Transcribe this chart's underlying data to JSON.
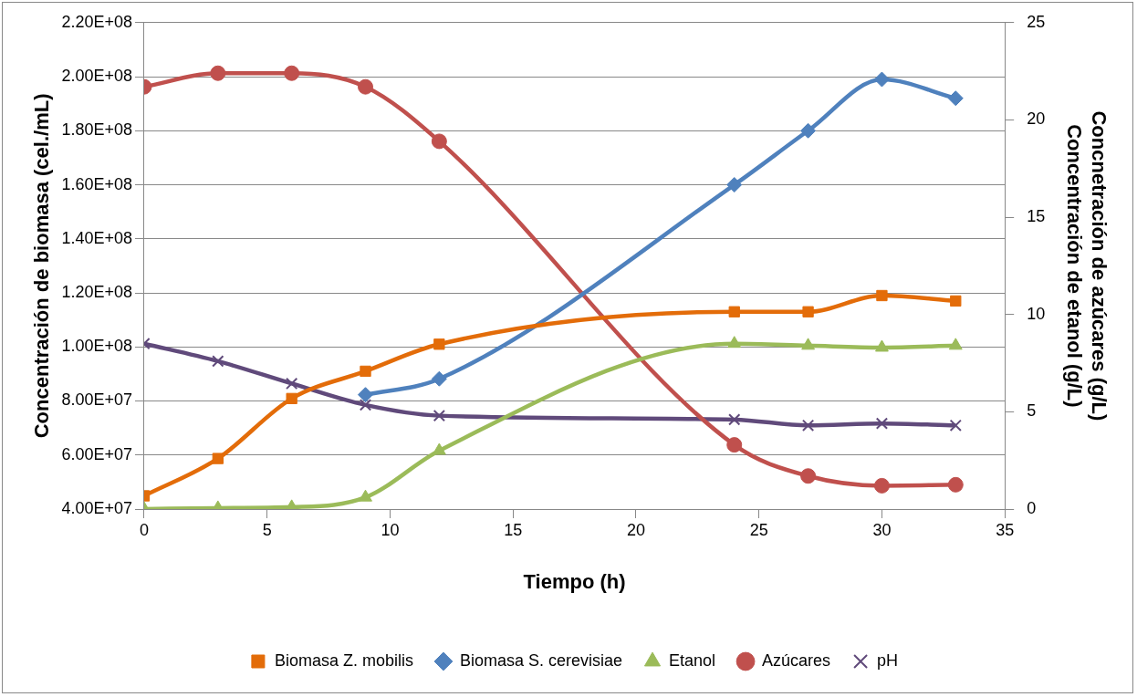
{
  "chart_data": {
    "type": "line",
    "xlabel": "Tiempo (h)",
    "ylabel": "Concentración de biomasa (cel./mL)",
    "y2label": "Concnetración de azúcares (g/L)\nConcentración de etanol (g/L)",
    "x": [
      0,
      3,
      6,
      9,
      12,
      24,
      27,
      30,
      33
    ],
    "xlim": [
      0,
      35
    ],
    "xticks": [
      0,
      5,
      10,
      15,
      20,
      25,
      30,
      35
    ],
    "ylim": [
      40000000,
      220000000
    ],
    "yticks": [
      {
        "value": 40000000,
        "label": "4.00E+07"
      },
      {
        "value": 60000000,
        "label": "6.00E+07"
      },
      {
        "value": 80000000,
        "label": "8.00E+07"
      },
      {
        "value": 100000000,
        "label": "1.00E+08"
      },
      {
        "value": 120000000,
        "label": "1.20E+08"
      },
      {
        "value": 140000000,
        "label": "1.40E+08"
      },
      {
        "value": 160000000,
        "label": "1.60E+08"
      },
      {
        "value": 180000000,
        "label": "1.80E+08"
      },
      {
        "value": 200000000,
        "label": "2.00E+08"
      },
      {
        "value": 220000000,
        "label": "2.20E+08"
      }
    ],
    "y2lim": [
      0,
      25
    ],
    "y2ticks": [
      0,
      5,
      10,
      15,
      20,
      25
    ],
    "grid": "y",
    "legend": "bottom",
    "series": [
      {
        "name": "Biomasa Z. mobilis",
        "color": "#e36c09",
        "marker": "square",
        "values": [
          44900000,
          58700000,
          80900000,
          91000000,
          101000000,
          113000000,
          113000000,
          119000000,
          117000000
        ]
      },
      {
        "name": "Biomasa S. cerevisiae",
        "color": "#4f81bd",
        "marker": "diamond",
        "values": [
          null,
          null,
          null,
          82300000,
          88200000,
          160000000,
          180000000,
          199000000,
          192000000
        ]
      },
      {
        "name": "Etanol",
        "color": "#9bbb59",
        "marker": "triangle",
        "axis": "y2",
        "values": [
          0,
          0.05,
          0.1,
          0.6,
          3.0,
          8.5,
          8.4,
          8.3,
          8.4
        ]
      },
      {
        "name": "Azúcares",
        "color": "#c0504d",
        "marker": "circle",
        "axis": "y2",
        "values": [
          21.7,
          22.4,
          22.4,
          21.7,
          18.9,
          3.3,
          1.7,
          1.2,
          1.25
        ]
      },
      {
        "name": "pH",
        "color": "#604a7b",
        "marker": "cross",
        "axis": "y2",
        "values": [
          8.5,
          7.6,
          6.45,
          5.35,
          4.8,
          4.6,
          4.3,
          4.4,
          4.3
        ]
      }
    ]
  }
}
